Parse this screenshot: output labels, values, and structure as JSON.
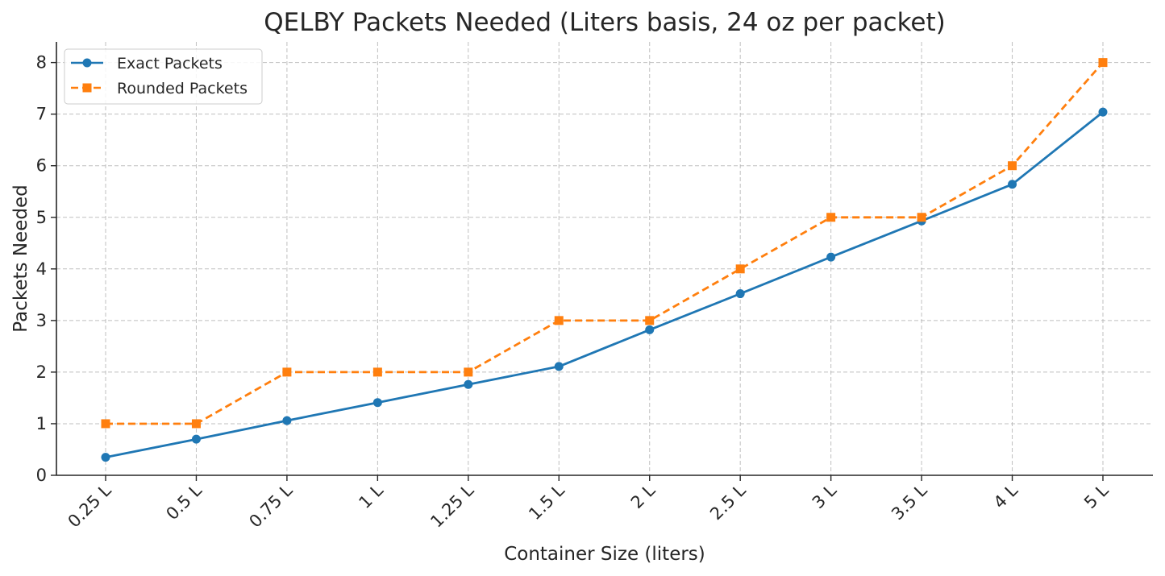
{
  "chart_data": {
    "type": "line",
    "title": "QELBY Packets Needed (Liters basis, 24 oz per packet)",
    "xlabel": "Container Size (liters)",
    "ylabel": "Packets Needed",
    "categories": [
      "0.25 L",
      "0.5 L",
      "0.75 L",
      "1 L",
      "1.25 L",
      "1.5 L",
      "2 L",
      "2.5 L",
      "3 L",
      "3.5 L",
      "4 L",
      "5 L"
    ],
    "ylim": [
      0,
      8.4
    ],
    "yticks": [
      "0",
      "1",
      "2",
      "3",
      "4",
      "5",
      "6",
      "7",
      "8"
    ],
    "grid": true,
    "legend_position": "top-left",
    "series": [
      {
        "name": "Exact Packets",
        "color": "#1f77b4",
        "line_style": "solid",
        "marker": "circle",
        "values": [
          0.35,
          0.7,
          1.06,
          1.41,
          1.76,
          2.11,
          2.82,
          3.52,
          4.23,
          4.93,
          5.64,
          7.04
        ]
      },
      {
        "name": "Rounded Packets",
        "color": "#ff7f0e",
        "line_style": "dashed",
        "marker": "square",
        "values": [
          1,
          1,
          2,
          2,
          2,
          3,
          3,
          4,
          5,
          5,
          6,
          8
        ]
      }
    ]
  }
}
